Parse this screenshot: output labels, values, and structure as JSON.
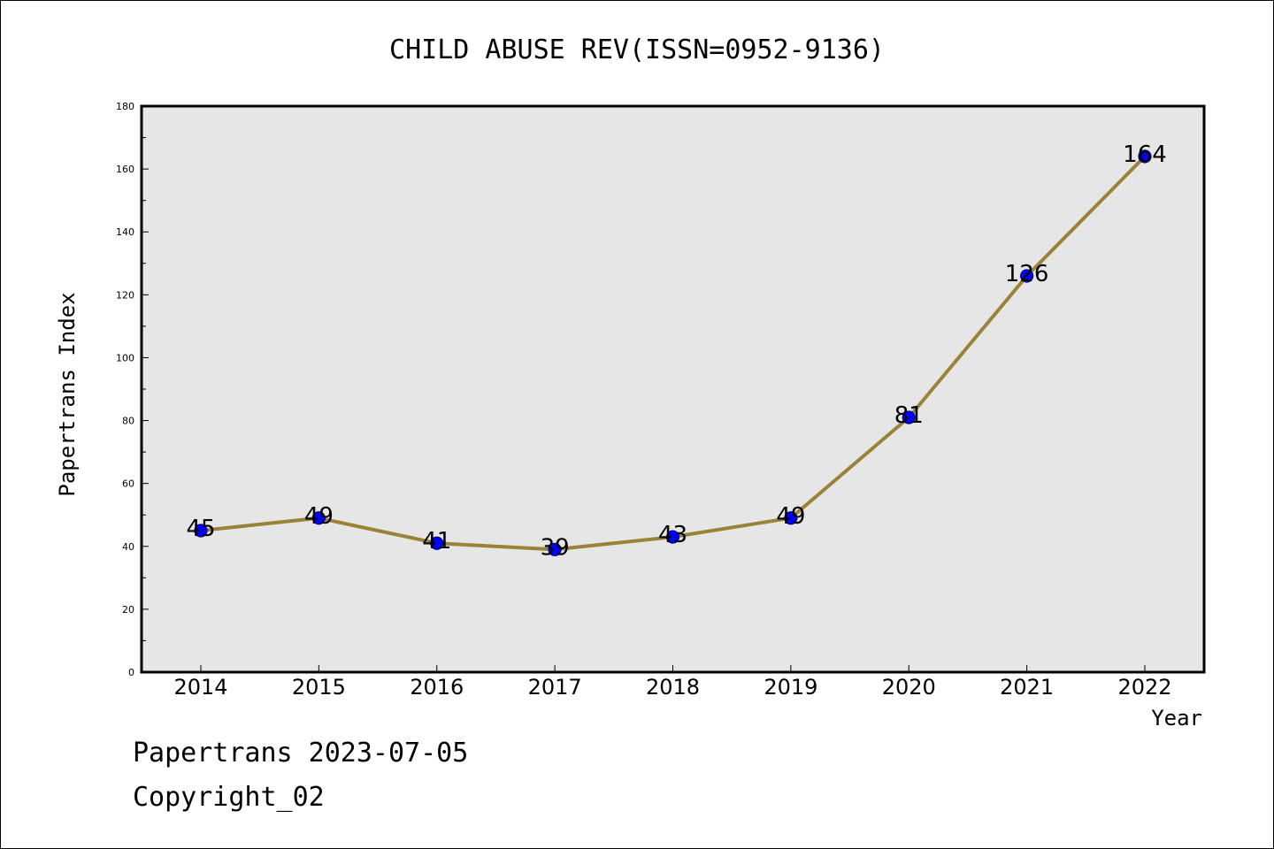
{
  "colors": {
    "plot_background": "#e6e6e6",
    "line": "#9a8238",
    "marker_fill": "#0000ff",
    "marker_edge": "#00008b",
    "axis": "#000000"
  },
  "footer": {
    "line1": "Papertrans 2023-07-05",
    "line2": "Copyright_02"
  },
  "chart_data": {
    "type": "line",
    "title": "CHILD ABUSE REV(ISSN=0952-9136)",
    "xlabel": "Year",
    "ylabel": "Papertrans Index",
    "categories": [
      "2014",
      "2015",
      "2016",
      "2017",
      "2018",
      "2019",
      "2020",
      "2021",
      "2022"
    ],
    "series": [
      {
        "values": [
          45,
          49,
          41,
          39,
          43,
          49,
          81,
          126,
          164
        ]
      }
    ],
    "data_labels": [
      "45",
      "49",
      "41",
      "39",
      "43",
      "49",
      "81",
      "126",
      "164"
    ],
    "ylim": [
      0,
      180
    ],
    "yticks": [
      0,
      20,
      40,
      60,
      80,
      100,
      120,
      140,
      160,
      180
    ],
    "ytick_labels": [
      "0",
      "20",
      "40",
      "60",
      "80",
      "100",
      "120",
      "140",
      "160",
      "180"
    ],
    "grid": false,
    "marker": "circle",
    "legend": "none"
  }
}
